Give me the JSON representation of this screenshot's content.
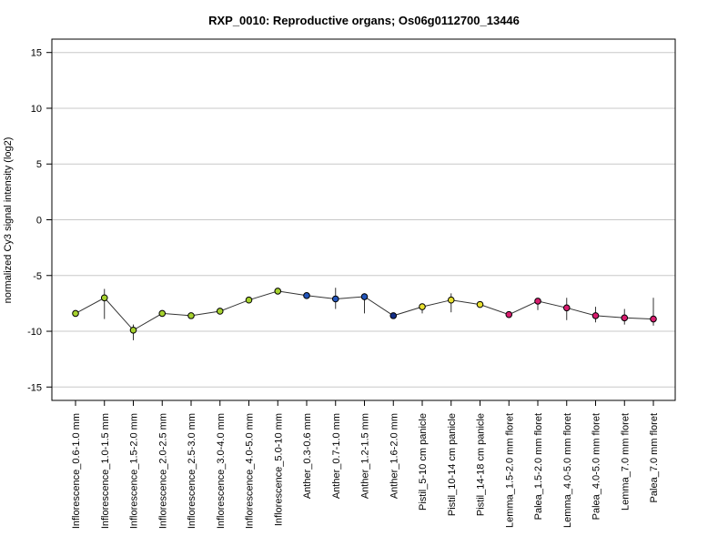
{
  "chart_data": {
    "type": "line",
    "title": "RXP_0010: Reproductive organs; Os06g0112700_13446",
    "ylabel": "normalized Cy3 signal intensity (log2)",
    "xlabel": "",
    "ylim": [
      -16.2,
      16.2
    ],
    "yticks": [
      15,
      10,
      5,
      0,
      -5,
      -10,
      -15
    ],
    "ytick_labels": [
      "15",
      "10",
      "5",
      "0",
      "-5",
      "-10",
      "-15"
    ],
    "grid": true,
    "legend": "none",
    "categories": [
      "Inflorescence_0.6-1.0 mm",
      "Inflorescence_1.0-1.5 mm",
      "Inflorescence_1.5-2.0 mm",
      "Inflorescence_2.0-2.5 mm",
      "Inflorescence_2.5-3.0 mm",
      "Inflorescence_3.0-4.0 mm",
      "Inflorescence_4.0-5.0 mm",
      "Inflorescence_5.0-10 mm",
      "Anther_0.3-0.6 mm",
      "Anther_0.7-1.0 mm",
      "Anther_1.2-1.5 mm",
      "Anther_1.6-2.0 mm",
      "Pistil_5-10 cm panicle",
      "Pistil_10-14 cm panicle",
      "Pistil_14-18 cm panicle",
      "Lemma_1.5-2.0 mm floret",
      "Palea_1.5-2.0 mm floret",
      "Lemma_4.0-5.0 mm floret",
      "Palea_4.0-5.0 mm floret",
      "Lemma_7.0 mm floret",
      "Palea_7.0 mm floret"
    ],
    "series": [
      {
        "values": [
          -8.4,
          -7.0,
          -9.9,
          -8.4,
          -8.6,
          -8.2,
          -7.2,
          -6.4,
          -6.8,
          -7.1,
          -6.9,
          -8.6,
          -7.8,
          -7.2,
          -7.6,
          -8.5,
          -7.3,
          -7.9,
          -8.6,
          -8.8,
          -8.9
        ],
        "err_low": [
          -8.4,
          -8.9,
          -10.8,
          -8.4,
          -8.6,
          -8.2,
          -7.2,
          -6.4,
          -6.8,
          -8.0,
          -8.4,
          -8.6,
          -8.4,
          -8.3,
          -7.6,
          -8.5,
          -8.1,
          -9.0,
          -9.2,
          -9.4,
          -9.5
        ],
        "err_high": [
          -8.4,
          -6.2,
          -9.4,
          -8.4,
          -8.6,
          -8.2,
          -7.2,
          -6.4,
          -6.8,
          -6.1,
          -6.6,
          -8.6,
          -7.5,
          -6.6,
          -7.6,
          -8.5,
          -7.1,
          -7.0,
          -7.8,
          -8.0,
          -7.0
        ],
        "colors": [
          "#a6d22e",
          "#a6d22e",
          "#a6d22e",
          "#a6d22e",
          "#a6d22e",
          "#a6d22e",
          "#a6d22e",
          "#a6d22e",
          "#2255bb",
          "#2255bb",
          "#2255bb",
          "#112d88",
          "#e8e030",
          "#e8e030",
          "#e8e030",
          "#d81c6e",
          "#d81c6e",
          "#d81c6e",
          "#d81c6e",
          "#d81c6e",
          "#d81c6e"
        ]
      }
    ]
  }
}
